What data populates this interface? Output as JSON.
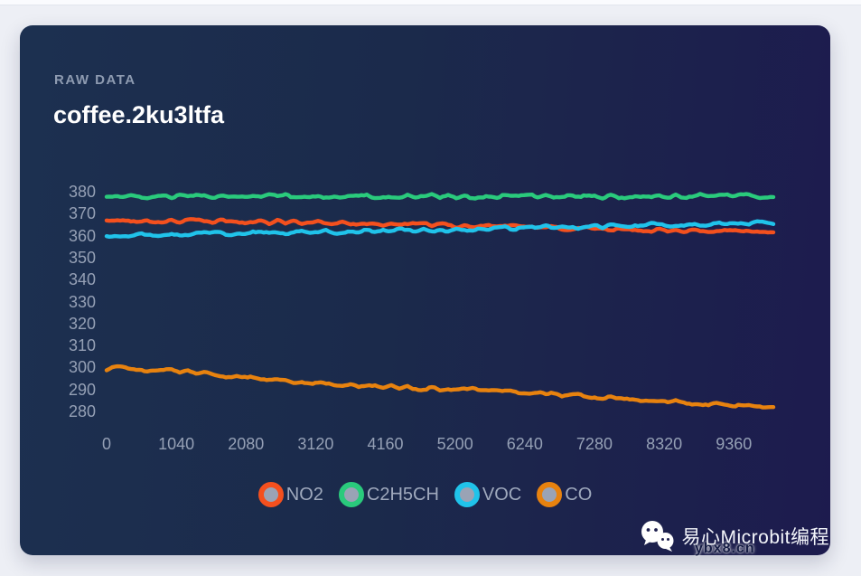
{
  "header": {
    "eyebrow": "RAW DATA",
    "title": "coffee.2ku3ltfa"
  },
  "chart_data": {
    "type": "line",
    "title": "coffee.2ku3ltfa",
    "xlabel": "",
    "ylabel": "",
    "grid": false,
    "legend_position": "bottom",
    "xlim": [
      0,
      9950
    ],
    "ylim": [
      275,
      385
    ],
    "x_ticks": [
      0,
      1040,
      2080,
      3120,
      4160,
      5200,
      6240,
      7280,
      8320,
      9360
    ],
    "y_ticks": [
      380,
      370,
      360,
      350,
      340,
      330,
      320,
      310,
      300,
      290,
      280
    ],
    "noise_amplitude": 0.9,
    "sample_x": [
      0,
      520,
      1040,
      1560,
      2080,
      2600,
      3120,
      3640,
      4160,
      4680,
      5200,
      5720,
      6240,
      6760,
      7280,
      7800,
      8320,
      8840,
      9360,
      9880
    ],
    "series": [
      {
        "name": "NO2",
        "color": "#f4501e",
        "values": [
          366.5,
          366.6,
          366.4,
          366.7,
          366.3,
          366.2,
          366.0,
          365.6,
          365.3,
          365.0,
          364.6,
          364.2,
          363.8,
          363.4,
          363.0,
          362.7,
          362.4,
          362.0,
          361.8,
          361.5
        ]
      },
      {
        "name": "C2H5CH",
        "color": "#2aca7c",
        "values": [
          377.4,
          377.6,
          377.9,
          377.5,
          378.0,
          378.3,
          377.7,
          378.1,
          377.6,
          378.2,
          377.9,
          377.6,
          378.3,
          378.0,
          377.5,
          377.9,
          377.6,
          378.1,
          378.4,
          377.7
        ]
      },
      {
        "name": "VOC",
        "color": "#20c3ea",
        "values": [
          360.4,
          360.7,
          360.5,
          360.9,
          361.0,
          361.3,
          361.5,
          361.8,
          362.1,
          362.4,
          362.7,
          363.1,
          363.4,
          363.8,
          364.2,
          364.6,
          365.0,
          365.3,
          365.6,
          365.9
        ]
      },
      {
        "name": "CO",
        "color": "#e7820f",
        "values": [
          299.6,
          299.2,
          298.3,
          296.8,
          295.2,
          293.9,
          293.0,
          292.2,
          291.4,
          290.7,
          290.1,
          289.3,
          288.5,
          287.6,
          286.6,
          285.7,
          284.8,
          283.8,
          282.9,
          282.2
        ]
      }
    ],
    "legend_swatch_inner_color": "#9aa3b5"
  },
  "legend": {
    "items": [
      {
        "label": "NO2",
        "color": "#f4501e"
      },
      {
        "label": "C2H5CH",
        "color": "#2aca7c"
      },
      {
        "label": "VOC",
        "color": "#20c3ea"
      },
      {
        "label": "CO",
        "color": "#e7820f"
      }
    ]
  },
  "watermark": {
    "brand": "易心Microbit编程",
    "domain": "ybx8.cn",
    "icon": "wechat-icon"
  },
  "colors": {
    "card_gradient_left": "#1c3050",
    "card_gradient_right": "#1d1b4e",
    "page_background": "#edeff5",
    "axis_label": "#95a0b5",
    "title_text": "#ffffff",
    "eyebrow_text": "#8e9bb1"
  }
}
